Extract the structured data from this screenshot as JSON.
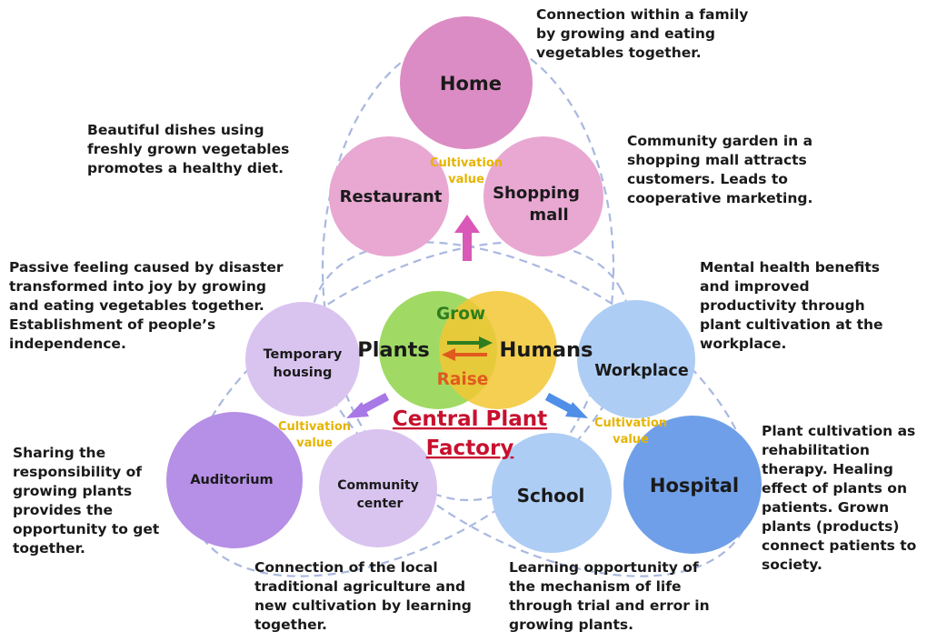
{
  "colors": {
    "home_group": "#e8a8d2",
    "home_group_dark": "#dc8cc4",
    "housing_group": "#d9c4f0",
    "housing_group_dark": "#b68fe6",
    "work_group": "#aecdf4",
    "work_group_dark": "#6f9fe8",
    "plants_circle": "#8fd34a",
    "humans_circle": "#f2c733",
    "cultivation_value": "#e6b400",
    "grow_text": "#2e7d1e",
    "raise_text": "#e05a1e",
    "central_text": "#c8102e",
    "dashed_line": "#a9b8e0",
    "arrow_top": "#d958b8",
    "arrow_left": "#a878e6",
    "arrow_right": "#4f8fe8"
  },
  "icons": [
    "arrow-up-icon",
    "arrow-down-left-icon",
    "arrow-down-right-icon",
    "exchange-arrows-icon"
  ],
  "circles": {
    "home": "Home",
    "restaurant": "Restaurant",
    "shopping_line1": "Shopping",
    "shopping_line2": "mall",
    "temporary_line1": "Temporary",
    "temporary_line2": "housing",
    "auditorium": "Auditorium",
    "community_line1": "Community",
    "community_line2": "center",
    "workplace": "Workplace",
    "school": "School",
    "hospital": "Hospital"
  },
  "center": {
    "plants": "Plants",
    "humans": "Humans",
    "grow": "Grow",
    "raise": "Raise",
    "title_line1": "Central Plant",
    "title_line2": "Factory"
  },
  "cultivation_value": {
    "line1": "Cultivation",
    "line2": "value"
  },
  "notes": {
    "home": "Connection within a family\nby growing and eating\nvegetables together.",
    "restaurant": "Beautiful dishes using\nfreshly grown vegetables\npromotes a healthy diet.",
    "shopping": "Community garden in a\nshopping mall attracts\ncustomers. Leads to\ncooperative marketing.",
    "temporary": "Passive feeling caused by disaster\ntransformed into joy by growing\nand eating vegetables together.\nEstablishment of people’s\nindependence.",
    "workplace": "Mental health benefits\nand improved\nproductivity through\nplant cultivation at the\nworkplace.",
    "auditorium": "Sharing the\nresponsibility of\ngrowing plants\nprovides the\nopportunity to get\ntogether.",
    "hospital": "Plant cultivation as\nrehabilitation\ntherapy. Healing\neffect of plants on\npatients. Grown\nplants (products)\nconnect patients to\nsociety.",
    "community": "Connection of the local\ntraditional agriculture and\nnew cultivation by learning\ntogether.",
    "school": "Learning opportunity of\nthe mechanism of life\nthrough trial and error in\ngrowing plants."
  }
}
